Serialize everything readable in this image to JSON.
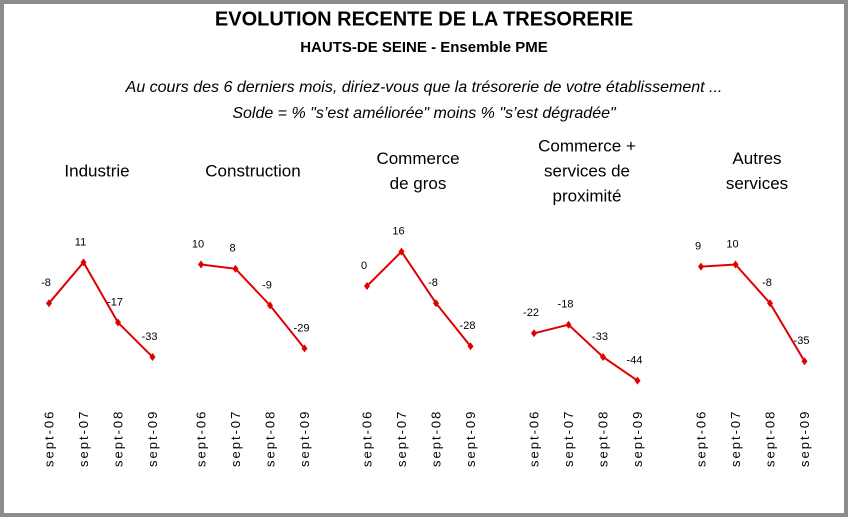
{
  "title": "EVOLUTION RECENTE DE LA TRESORERIE",
  "subtitle": "HAUTS-DE SEINE - Ensemble PME",
  "notes": [
    "Au cours des 6 derniers mois, diriez-vous que la trésorerie de votre établissement ...",
    "Solde = %  \"s’est améliorée\"  moins %  \"s’est dégradée\""
  ],
  "chart_data": [
    {
      "type": "line",
      "title": [
        "Industrie"
      ],
      "categories": [
        "sept-06",
        "sept-07",
        "sept-08",
        "sept-09"
      ],
      "values": [
        -8,
        11,
        -17,
        -33
      ],
      "color": "#e00000"
    },
    {
      "type": "line",
      "title": [
        "Construction"
      ],
      "categories": [
        "sept-06",
        "sept-07",
        "sept-08",
        "sept-09"
      ],
      "values": [
        10,
        8,
        -9,
        -29
      ],
      "color": "#e00000"
    },
    {
      "type": "line",
      "title": [
        "Commerce",
        "de gros"
      ],
      "categories": [
        "sept-06",
        "sept-07",
        "sept-08",
        "sept-09"
      ],
      "values": [
        0,
        16,
        -8,
        -28
      ],
      "color": "#e00000"
    },
    {
      "type": "line",
      "title": [
        "Commerce +",
        "services de",
        "proximité"
      ],
      "categories": [
        "sept-06",
        "sept-07",
        "sept-08",
        "sept-09"
      ],
      "values": [
        -22,
        -18,
        -33,
        -44
      ],
      "color": "#e00000"
    },
    {
      "type": "line",
      "title": [
        "Autres",
        "services"
      ],
      "categories": [
        "sept-06",
        "sept-07",
        "sept-08",
        "sept-09"
      ],
      "values": [
        9,
        10,
        -8,
        -35
      ],
      "color": "#e00000"
    }
  ]
}
